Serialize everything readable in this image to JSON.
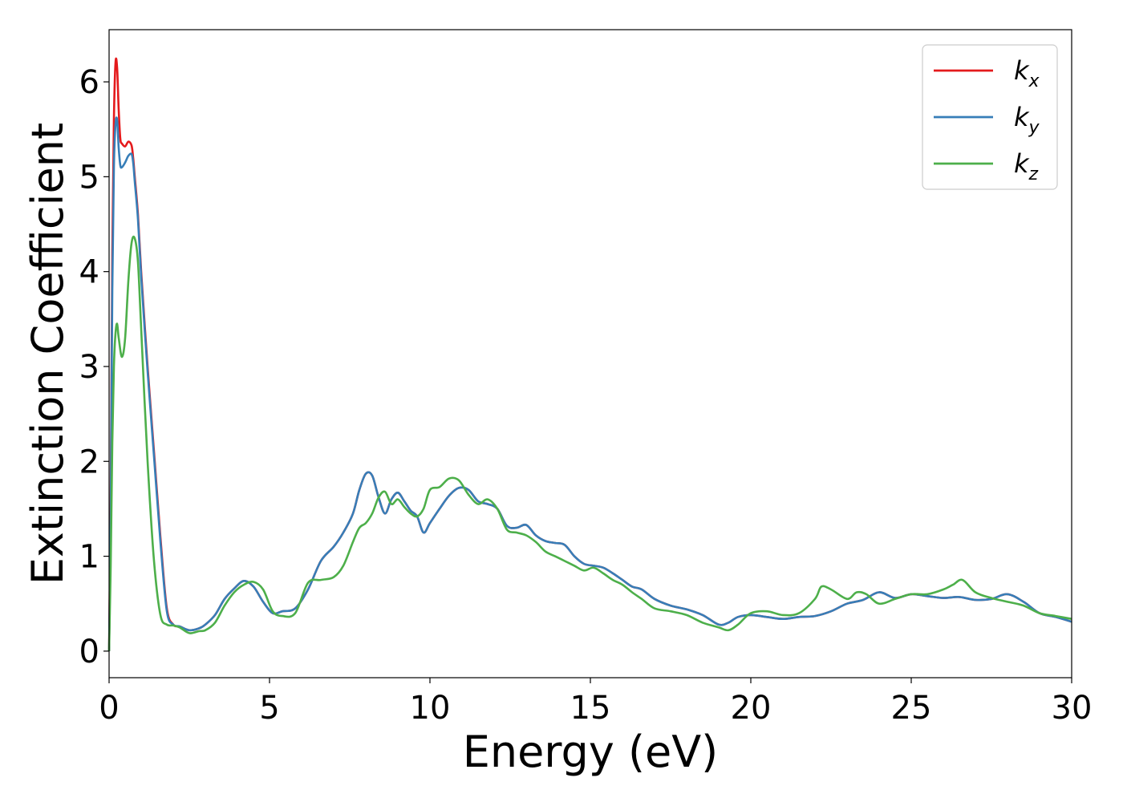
{
  "chart_data": {
    "type": "line",
    "xlabel": "Energy (eV)",
    "ylabel": "Extinction Coefficient",
    "xlim": [
      0,
      30
    ],
    "ylim": [
      -0.28,
      6.55
    ],
    "xticks": [
      0,
      5,
      10,
      15,
      20,
      25,
      30
    ],
    "yticks": [
      0,
      1,
      2,
      3,
      4,
      5,
      6
    ],
    "grid": false,
    "legend_position": "top-right",
    "series": [
      {
        "name": "k_x",
        "label_base": "k",
        "label_sub": "x",
        "color": "#e41a1c",
        "x": [
          0,
          0.05,
          0.1,
          0.15,
          0.2,
          0.25,
          0.3,
          0.35,
          0.4,
          0.5,
          0.6,
          0.7,
          0.75,
          0.8,
          0.9,
          1.0,
          1.2,
          1.4,
          1.6,
          1.8,
          2.0,
          2.2,
          2.5,
          2.8,
          3.0,
          3.3,
          3.6,
          3.9,
          4.2,
          4.5,
          4.8,
          5.1,
          5.4,
          5.8,
          6.2,
          6.6,
          7.0,
          7.3,
          7.6,
          7.8,
          8.0,
          8.2,
          8.4,
          8.6,
          8.8,
          9.0,
          9.2,
          9.4,
          9.6,
          9.8,
          10.0,
          10.3,
          10.6,
          10.9,
          11.2,
          11.5,
          11.8,
          12.1,
          12.4,
          12.7,
          13.0,
          13.3,
          13.6,
          13.9,
          14.2,
          14.5,
          14.8,
          15.1,
          15.4,
          15.7,
          16.0,
          16.3,
          16.6,
          17.0,
          17.5,
          18.0,
          18.5,
          19.0,
          19.3,
          19.6,
          20.0,
          20.5,
          21.0,
          21.5,
          22.0,
          22.5,
          23.0,
          23.5,
          24.0,
          24.5,
          25.0,
          25.5,
          26.0,
          26.5,
          27.0,
          27.5,
          28.0,
          28.5,
          29.0,
          29.5,
          30.0
        ],
        "y": [
          0,
          1.6,
          4.2,
          5.6,
          6.2,
          6.15,
          5.7,
          5.4,
          5.35,
          5.32,
          5.37,
          5.33,
          5.2,
          5.0,
          4.6,
          4.0,
          3.0,
          2.1,
          1.2,
          0.45,
          0.28,
          0.26,
          0.22,
          0.24,
          0.28,
          0.38,
          0.55,
          0.66,
          0.74,
          0.68,
          0.52,
          0.4,
          0.42,
          0.45,
          0.65,
          0.95,
          1.1,
          1.25,
          1.45,
          1.7,
          1.87,
          1.85,
          1.62,
          1.45,
          1.6,
          1.67,
          1.58,
          1.48,
          1.42,
          1.25,
          1.35,
          1.5,
          1.64,
          1.72,
          1.7,
          1.58,
          1.55,
          1.5,
          1.32,
          1.3,
          1.33,
          1.22,
          1.16,
          1.14,
          1.12,
          1.0,
          0.92,
          0.9,
          0.88,
          0.82,
          0.75,
          0.68,
          0.65,
          0.55,
          0.48,
          0.44,
          0.38,
          0.28,
          0.3,
          0.36,
          0.38,
          0.36,
          0.34,
          0.36,
          0.37,
          0.42,
          0.5,
          0.54,
          0.62,
          0.56,
          0.6,
          0.58,
          0.56,
          0.57,
          0.54,
          0.55,
          0.6,
          0.52,
          0.4,
          0.36,
          0.31
        ]
      },
      {
        "name": "k_y",
        "label_base": "k",
        "label_sub": "y",
        "color": "#377eb8",
        "x": [
          0,
          0.05,
          0.1,
          0.15,
          0.2,
          0.25,
          0.3,
          0.35,
          0.4,
          0.5,
          0.6,
          0.7,
          0.75,
          0.8,
          0.9,
          1.0,
          1.2,
          1.4,
          1.6,
          1.8,
          2.0,
          2.2,
          2.5,
          2.8,
          3.0,
          3.3,
          3.6,
          3.9,
          4.2,
          4.5,
          4.8,
          5.1,
          5.4,
          5.8,
          6.2,
          6.6,
          7.0,
          7.3,
          7.6,
          7.8,
          8.0,
          8.2,
          8.4,
          8.6,
          8.8,
          9.0,
          9.2,
          9.4,
          9.6,
          9.8,
          10.0,
          10.3,
          10.6,
          10.9,
          11.2,
          11.5,
          11.8,
          12.1,
          12.4,
          12.7,
          13.0,
          13.3,
          13.6,
          13.9,
          14.2,
          14.5,
          14.8,
          15.1,
          15.4,
          15.7,
          16.0,
          16.3,
          16.6,
          17.0,
          17.5,
          18.0,
          18.5,
          19.0,
          19.3,
          19.6,
          20.0,
          20.5,
          21.0,
          21.5,
          22.0,
          22.5,
          23.0,
          23.5,
          24.0,
          24.5,
          25.0,
          25.5,
          26.0,
          26.5,
          27.0,
          27.5,
          28.0,
          28.5,
          29.0,
          29.5,
          30.0
        ],
        "y": [
          0,
          1.4,
          3.8,
          5.1,
          5.55,
          5.6,
          5.3,
          5.12,
          5.1,
          5.15,
          5.22,
          5.24,
          5.15,
          4.95,
          4.55,
          3.95,
          2.95,
          2.05,
          1.15,
          0.42,
          0.28,
          0.26,
          0.22,
          0.24,
          0.28,
          0.38,
          0.55,
          0.66,
          0.74,
          0.68,
          0.52,
          0.4,
          0.42,
          0.45,
          0.65,
          0.95,
          1.1,
          1.25,
          1.45,
          1.7,
          1.87,
          1.85,
          1.62,
          1.45,
          1.6,
          1.67,
          1.58,
          1.48,
          1.42,
          1.25,
          1.35,
          1.5,
          1.64,
          1.72,
          1.7,
          1.58,
          1.55,
          1.5,
          1.32,
          1.3,
          1.33,
          1.22,
          1.16,
          1.14,
          1.12,
          1.0,
          0.92,
          0.9,
          0.88,
          0.82,
          0.75,
          0.68,
          0.65,
          0.55,
          0.48,
          0.44,
          0.38,
          0.28,
          0.3,
          0.36,
          0.38,
          0.36,
          0.34,
          0.36,
          0.37,
          0.42,
          0.5,
          0.54,
          0.62,
          0.56,
          0.6,
          0.58,
          0.56,
          0.57,
          0.54,
          0.55,
          0.6,
          0.52,
          0.4,
          0.36,
          0.31
        ]
      },
      {
        "name": "k_z",
        "label_base": "k",
        "label_sub": "z",
        "color": "#4daf4a",
        "x": [
          0,
          0.05,
          0.1,
          0.15,
          0.2,
          0.25,
          0.3,
          0.4,
          0.5,
          0.6,
          0.7,
          0.8,
          0.9,
          1.0,
          1.2,
          1.4,
          1.6,
          1.8,
          2.0,
          2.2,
          2.5,
          2.8,
          3.0,
          3.3,
          3.6,
          3.9,
          4.2,
          4.5,
          4.8,
          5.1,
          5.4,
          5.8,
          6.2,
          6.6,
          7.0,
          7.3,
          7.6,
          7.8,
          8.0,
          8.2,
          8.4,
          8.6,
          8.8,
          9.0,
          9.2,
          9.4,
          9.6,
          9.8,
          10.0,
          10.3,
          10.6,
          10.9,
          11.2,
          11.5,
          11.8,
          12.1,
          12.4,
          12.7,
          13.0,
          13.3,
          13.6,
          13.9,
          14.2,
          14.5,
          14.8,
          15.1,
          15.4,
          15.7,
          16.0,
          16.3,
          16.6,
          17.0,
          17.5,
          18.0,
          18.5,
          19.0,
          19.3,
          19.6,
          20.0,
          20.5,
          21.0,
          21.5,
          22.0,
          22.2,
          22.5,
          23.0,
          23.3,
          23.6,
          24.0,
          24.5,
          25.0,
          25.5,
          26.0,
          26.3,
          26.6,
          27.0,
          27.5,
          28.0,
          28.5,
          29.0,
          29.5,
          30.0
        ],
        "y": [
          0,
          0.9,
          2.2,
          3.0,
          3.35,
          3.45,
          3.3,
          3.1,
          3.3,
          3.9,
          4.3,
          4.35,
          4.1,
          3.4,
          2.0,
          0.95,
          0.38,
          0.28,
          0.27,
          0.25,
          0.19,
          0.21,
          0.22,
          0.3,
          0.48,
          0.62,
          0.7,
          0.73,
          0.65,
          0.42,
          0.37,
          0.4,
          0.72,
          0.75,
          0.78,
          0.9,
          1.15,
          1.3,
          1.35,
          1.45,
          1.62,
          1.68,
          1.55,
          1.6,
          1.52,
          1.45,
          1.42,
          1.5,
          1.7,
          1.73,
          1.82,
          1.8,
          1.65,
          1.55,
          1.6,
          1.5,
          1.28,
          1.25,
          1.22,
          1.15,
          1.05,
          1.0,
          0.95,
          0.9,
          0.85,
          0.88,
          0.82,
          0.75,
          0.7,
          0.62,
          0.55,
          0.45,
          0.42,
          0.38,
          0.3,
          0.25,
          0.22,
          0.28,
          0.4,
          0.42,
          0.38,
          0.4,
          0.55,
          0.68,
          0.65,
          0.55,
          0.62,
          0.6,
          0.5,
          0.55,
          0.6,
          0.6,
          0.65,
          0.7,
          0.75,
          0.62,
          0.56,
          0.52,
          0.48,
          0.4,
          0.37,
          0.34
        ]
      }
    ]
  }
}
